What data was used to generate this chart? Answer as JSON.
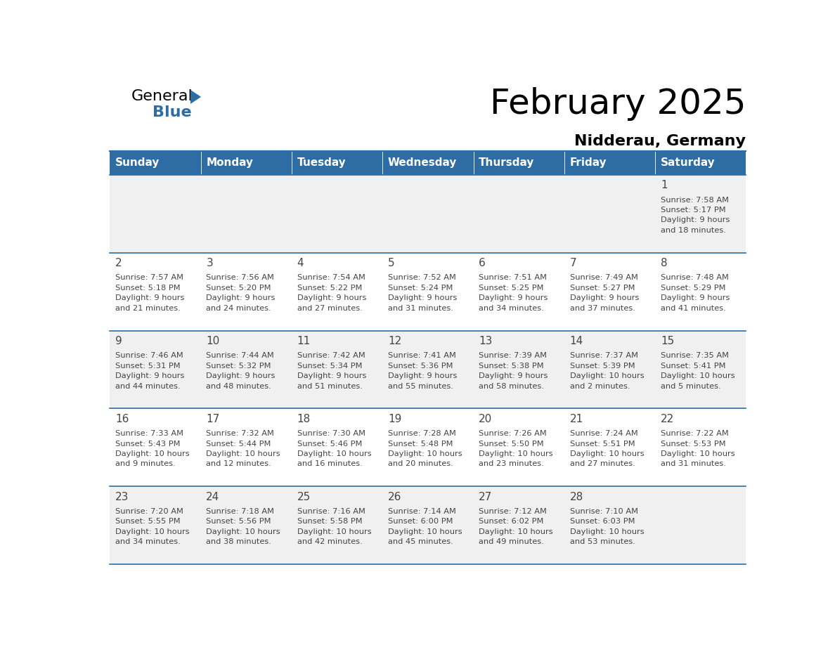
{
  "title": "February 2025",
  "subtitle": "Nidderau, Germany",
  "days_of_week": [
    "Sunday",
    "Monday",
    "Tuesday",
    "Wednesday",
    "Thursday",
    "Friday",
    "Saturday"
  ],
  "header_bg": "#2e6da4",
  "header_text": "#ffffff",
  "cell_bg_row0": "#f0f0f0",
  "cell_bg_row1": "#ffffff",
  "cell_bg_row2": "#f0f0f0",
  "cell_bg_row3": "#ffffff",
  "cell_bg_row4": "#f0f0f0",
  "divider_color": "#2e6da4",
  "text_color": "#444444",
  "calendar": [
    [
      null,
      null,
      null,
      null,
      null,
      null,
      {
        "day": "1",
        "sunrise": "7:58 AM",
        "sunset": "5:17 PM",
        "daylight": "9 hours\nand 18 minutes."
      }
    ],
    [
      {
        "day": "2",
        "sunrise": "7:57 AM",
        "sunset": "5:18 PM",
        "daylight": "9 hours\nand 21 minutes."
      },
      {
        "day": "3",
        "sunrise": "7:56 AM",
        "sunset": "5:20 PM",
        "daylight": "9 hours\nand 24 minutes."
      },
      {
        "day": "4",
        "sunrise": "7:54 AM",
        "sunset": "5:22 PM",
        "daylight": "9 hours\nand 27 minutes."
      },
      {
        "day": "5",
        "sunrise": "7:52 AM",
        "sunset": "5:24 PM",
        "daylight": "9 hours\nand 31 minutes."
      },
      {
        "day": "6",
        "sunrise": "7:51 AM",
        "sunset": "5:25 PM",
        "daylight": "9 hours\nand 34 minutes."
      },
      {
        "day": "7",
        "sunrise": "7:49 AM",
        "sunset": "5:27 PM",
        "daylight": "9 hours\nand 37 minutes."
      },
      {
        "day": "8",
        "sunrise": "7:48 AM",
        "sunset": "5:29 PM",
        "daylight": "9 hours\nand 41 minutes."
      }
    ],
    [
      {
        "day": "9",
        "sunrise": "7:46 AM",
        "sunset": "5:31 PM",
        "daylight": "9 hours\nand 44 minutes."
      },
      {
        "day": "10",
        "sunrise": "7:44 AM",
        "sunset": "5:32 PM",
        "daylight": "9 hours\nand 48 minutes."
      },
      {
        "day": "11",
        "sunrise": "7:42 AM",
        "sunset": "5:34 PM",
        "daylight": "9 hours\nand 51 minutes."
      },
      {
        "day": "12",
        "sunrise": "7:41 AM",
        "sunset": "5:36 PM",
        "daylight": "9 hours\nand 55 minutes."
      },
      {
        "day": "13",
        "sunrise": "7:39 AM",
        "sunset": "5:38 PM",
        "daylight": "9 hours\nand 58 minutes."
      },
      {
        "day": "14",
        "sunrise": "7:37 AM",
        "sunset": "5:39 PM",
        "daylight": "10 hours\nand 2 minutes."
      },
      {
        "day": "15",
        "sunrise": "7:35 AM",
        "sunset": "5:41 PM",
        "daylight": "10 hours\nand 5 minutes."
      }
    ],
    [
      {
        "day": "16",
        "sunrise": "7:33 AM",
        "sunset": "5:43 PM",
        "daylight": "10 hours\nand 9 minutes."
      },
      {
        "day": "17",
        "sunrise": "7:32 AM",
        "sunset": "5:44 PM",
        "daylight": "10 hours\nand 12 minutes."
      },
      {
        "day": "18",
        "sunrise": "7:30 AM",
        "sunset": "5:46 PM",
        "daylight": "10 hours\nand 16 minutes."
      },
      {
        "day": "19",
        "sunrise": "7:28 AM",
        "sunset": "5:48 PM",
        "daylight": "10 hours\nand 20 minutes."
      },
      {
        "day": "20",
        "sunrise": "7:26 AM",
        "sunset": "5:50 PM",
        "daylight": "10 hours\nand 23 minutes."
      },
      {
        "day": "21",
        "sunrise": "7:24 AM",
        "sunset": "5:51 PM",
        "daylight": "10 hours\nand 27 minutes."
      },
      {
        "day": "22",
        "sunrise": "7:22 AM",
        "sunset": "5:53 PM",
        "daylight": "10 hours\nand 31 minutes."
      }
    ],
    [
      {
        "day": "23",
        "sunrise": "7:20 AM",
        "sunset": "5:55 PM",
        "daylight": "10 hours\nand 34 minutes."
      },
      {
        "day": "24",
        "sunrise": "7:18 AM",
        "sunset": "5:56 PM",
        "daylight": "10 hours\nand 38 minutes."
      },
      {
        "day": "25",
        "sunrise": "7:16 AM",
        "sunset": "5:58 PM",
        "daylight": "10 hours\nand 42 minutes."
      },
      {
        "day": "26",
        "sunrise": "7:14 AM",
        "sunset": "6:00 PM",
        "daylight": "10 hours\nand 45 minutes."
      },
      {
        "day": "27",
        "sunrise": "7:12 AM",
        "sunset": "6:02 PM",
        "daylight": "10 hours\nand 49 minutes."
      },
      {
        "day": "28",
        "sunrise": "7:10 AM",
        "sunset": "6:03 PM",
        "daylight": "10 hours\nand 53 minutes."
      },
      null
    ]
  ],
  "title_fontsize": 36,
  "subtitle_fontsize": 16,
  "header_fontsize": 11,
  "day_num_fontsize": 11,
  "cell_fontsize": 8.2,
  "logo_general_fontsize": 16,
  "logo_blue_fontsize": 16
}
